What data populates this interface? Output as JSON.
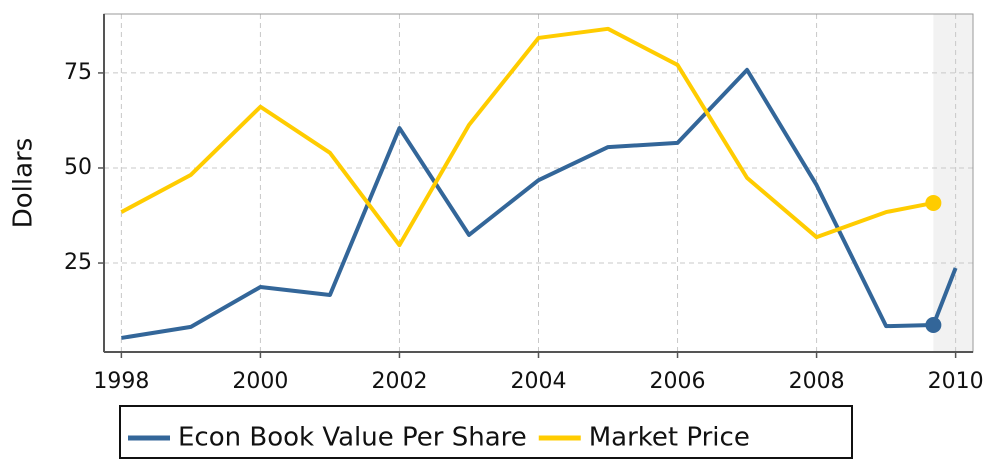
{
  "chart_data": {
    "type": "line",
    "ylabel": "Dollars",
    "x": [
      1998,
      1999,
      2000,
      2001,
      2002,
      2003,
      2004,
      2005,
      2006,
      2007,
      2008,
      2009,
      2009.68,
      2010
    ],
    "series": [
      {
        "name": "Econ Book Value Per Share",
        "color": "#336699",
        "values": [
          5.3,
          8.2,
          18.7,
          16.6,
          60.5,
          32.4,
          46.8,
          55.5,
          56.6,
          75.8,
          45.5,
          8.4,
          8.7,
          23.7
        ]
      },
      {
        "name": "Market Price",
        "color": "#ffcc00",
        "values": [
          38.4,
          48.2,
          66.1,
          54,
          29.7,
          61.3,
          84.2,
          86.6,
          77.1,
          47.4,
          31.8,
          38.4,
          40.8,
          null
        ]
      }
    ],
    "marker_index": 12,
    "highlight_xrange": [
      2009.68,
      2010.25
    ],
    "xlim": [
      1997.75,
      2010.25
    ],
    "ylim": [
      1.6,
      90.5
    ],
    "xticks": [
      1998,
      2000,
      2002,
      2004,
      2006,
      2008,
      2010
    ],
    "yticks": [
      25,
      50,
      75
    ],
    "grid": true,
    "legend": "bottom"
  }
}
